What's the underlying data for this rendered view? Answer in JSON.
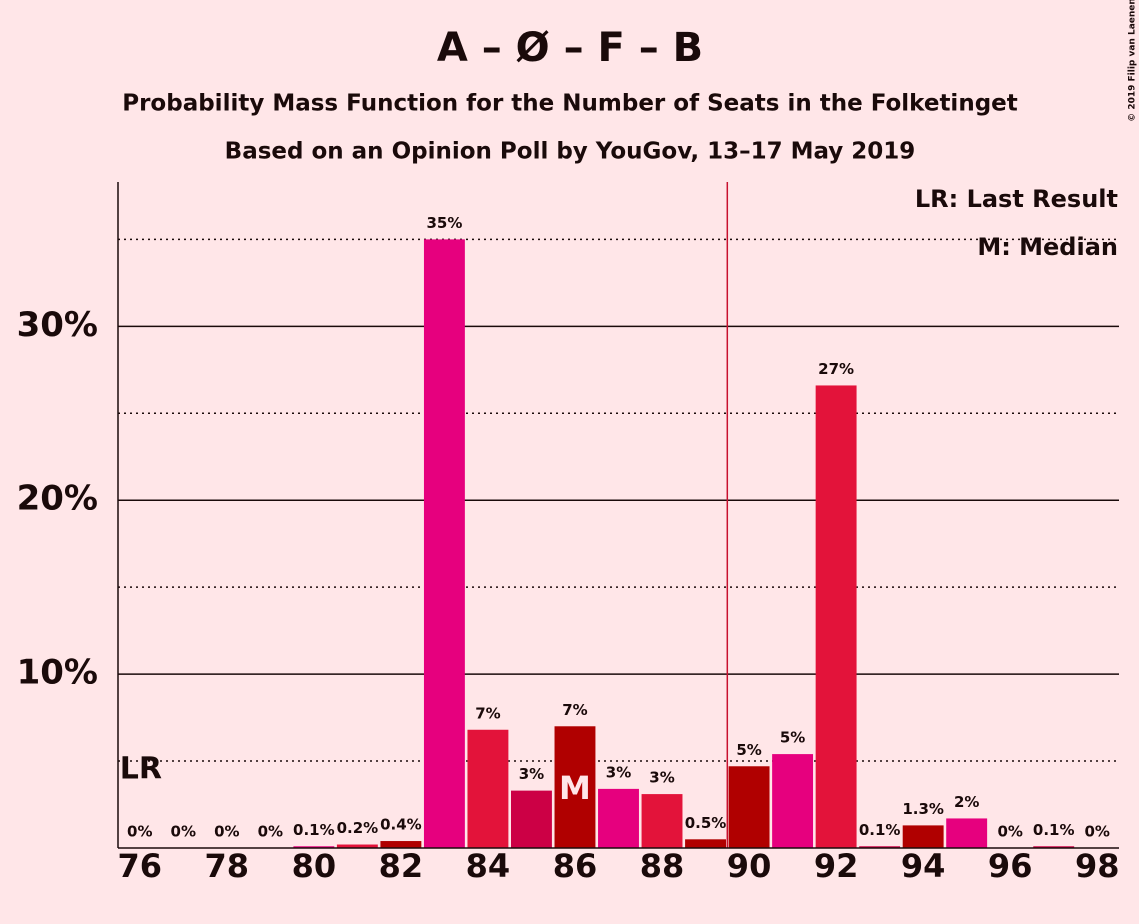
{
  "chart_data": {
    "type": "bar",
    "title": "A – Ø – F – B",
    "subtitle": "Probability Mass Function for the Number of Seats in the Folketinget",
    "subtitle2": "Based on an Opinion Poll by YouGov, 13–17 May 2019",
    "credit": "© 2019 Filip van Laenen",
    "x": [
      76,
      77,
      78,
      79,
      80,
      81,
      82,
      83,
      84,
      85,
      86,
      87,
      88,
      89,
      90,
      91,
      92,
      93,
      94,
      95,
      96,
      97,
      98
    ],
    "values": [
      0,
      0,
      0,
      0,
      0.1,
      0.2,
      0.4,
      35,
      6.8,
      3.3,
      7.0,
      3.4,
      3.1,
      0.5,
      4.7,
      5.4,
      26.6,
      0.1,
      1.3,
      1.7,
      0,
      0.1,
      0
    ],
    "value_labels": [
      "0%",
      "0%",
      "0%",
      "0%",
      "0.1%",
      "0.2%",
      "0.4%",
      "35%",
      "7%",
      "3%",
      "7%",
      "3%",
      "3%",
      "0.5%",
      "5%",
      "5%",
      "27%",
      "0.1%",
      "1.3%",
      "2%",
      "0%",
      "0.1%",
      "0%"
    ],
    "colors": [
      "#e6007e",
      "#e3133a",
      "#cc0045",
      "#b00000",
      "#e6007e",
      "#e3133a",
      "#b00000",
      "#e6007e",
      "#e3133a",
      "#cc0045",
      "#b00000",
      "#e6007e",
      "#e3133a",
      "#b00000",
      "#b00000",
      "#e6007e",
      "#e3133a",
      "#cc0045",
      "#b00000",
      "#e6007e",
      "#e3133a",
      "#cc0045",
      "#b00000"
    ],
    "xlim": [
      75.5,
      98.5
    ],
    "xticks": [
      76,
      78,
      80,
      82,
      84,
      86,
      88,
      90,
      92,
      94,
      96,
      98
    ],
    "ylim": [
      0,
      38.3
    ],
    "yticks": [
      {
        "value": 10,
        "label": "10%"
      },
      {
        "value": 20,
        "label": "20%"
      },
      {
        "value": 30,
        "label": "30%"
      }
    ],
    "minor_yticks": [
      5,
      15,
      25,
      35
    ],
    "majority_line": 89.5,
    "median": {
      "x": 86,
      "label": "M"
    },
    "last_result": {
      "x": 76,
      "label": "LR"
    },
    "legend": [
      "LR: Last Result",
      "M: Median"
    ]
  }
}
